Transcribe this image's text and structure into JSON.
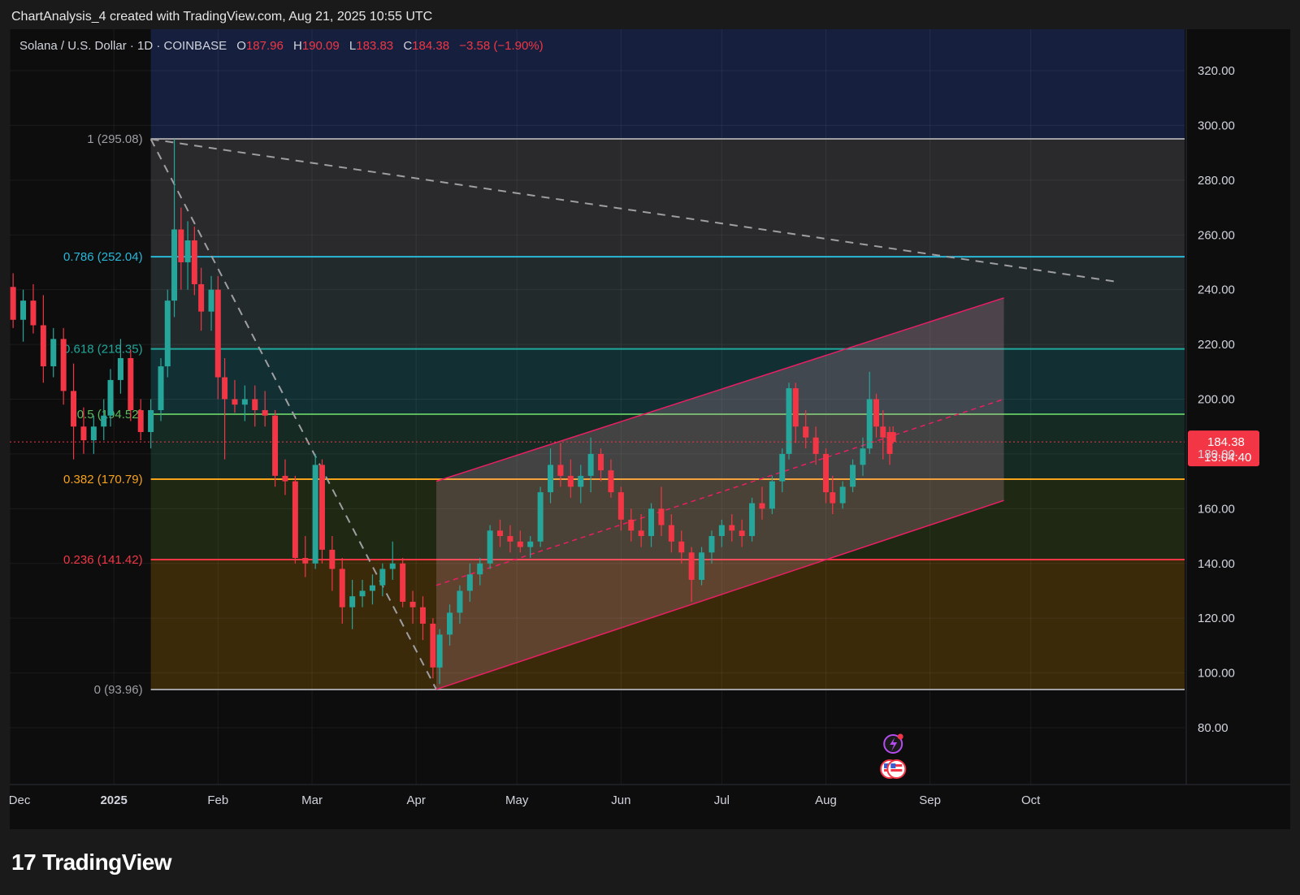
{
  "header": {
    "attribution": "ChartAnalysis_4 created with TradingView.com, Aug 21, 2025 10:55 UTC"
  },
  "legend": {
    "symbol": "Solana / U.S. Dollar · 1D · COINBASE",
    "open_label": "O",
    "open": "187.96",
    "high_label": "H",
    "high": "190.09",
    "low_label": "L",
    "low": "183.83",
    "close_label": "C",
    "close": "184.38",
    "change": "−3.58 (−1.90%)"
  },
  "footer": {
    "brand": "TradingView",
    "logo_mark": "17"
  },
  "colors": {
    "up": "#26a69a",
    "down": "#f23645",
    "channel": "#e91e63",
    "background": "#0d0d0e",
    "axis_text": "#d1d4dc"
  },
  "chart_data": {
    "type": "candlestick",
    "symbol": "SOLUSD",
    "timeframe": "1D",
    "ylim": [
      70,
      330
    ],
    "y_ticks": [
      80,
      100,
      120,
      140,
      160,
      180,
      200,
      220,
      240,
      260,
      280,
      300,
      320
    ],
    "y_tick_labels": [
      "80.00",
      "100.00",
      "120.00",
      "140.00",
      "160.00",
      "180.00",
      "200.00",
      "220.00",
      "240.00",
      "260.00",
      "280.00",
      "300.00",
      "320.00"
    ],
    "xlim": [
      "2024-12-01",
      "2025-10-26"
    ],
    "x_ticks": [
      {
        "date": "2024-12-01",
        "label": "Dec"
      },
      {
        "date": "2025-01-01",
        "label": "2025"
      },
      {
        "date": "2025-02-01",
        "label": "Feb"
      },
      {
        "date": "2025-03-01",
        "label": "Mar"
      },
      {
        "date": "2025-04-01",
        "label": "Apr"
      },
      {
        "date": "2025-05-01",
        "label": "May"
      },
      {
        "date": "2025-06-01",
        "label": "Jun"
      },
      {
        "date": "2025-07-01",
        "label": "Jul"
      },
      {
        "date": "2025-08-01",
        "label": "Aug"
      },
      {
        "date": "2025-09-01",
        "label": "Sep"
      },
      {
        "date": "2025-10-01",
        "label": "Oct"
      }
    ],
    "current_price": {
      "value": 184.38,
      "label": "184.38",
      "countdown": "13:04:40"
    },
    "fib_start": "2025-01-12",
    "fib_levels": [
      {
        "ratio": "1",
        "price": 295.08,
        "label": "1 (295.08)",
        "color": "#9e9ea3",
        "band": "#2a2a2c"
      },
      {
        "ratio": "0.786",
        "price": 252.04,
        "label": "0.786 (252.04)",
        "color": "#2ab7d8",
        "band": "#222a2c"
      },
      {
        "ratio": "0.618",
        "price": 218.35,
        "label": "0.618 (218.35)",
        "color": "#1fa89a",
        "band": "#123034"
      },
      {
        "ratio": "0.5",
        "price": 194.52,
        "label": "0.5 (194.52)",
        "color": "#5cb85c",
        "band": "#142a22"
      },
      {
        "ratio": "0.382",
        "price": 170.79,
        "label": "0.382 (170.79)",
        "color": "#f7a21b",
        "band": "#1e2812"
      },
      {
        "ratio": "0.236",
        "price": 141.42,
        "label": "0.236 (141.42)",
        "color": "#f23645",
        "band": "#3a2a0a"
      },
      {
        "ratio": "0",
        "price": 93.96,
        "label": "0 (93.96)",
        "color": "#9e9ea3",
        "band": "#3b1519"
      }
    ],
    "top_band_color": "#16203e",
    "trendlines": [
      {
        "from": [
          "2025-01-12",
          295
        ],
        "to": [
          "2025-10-26",
          243
        ],
        "style": "dashed",
        "color": "#9e9ea3"
      },
      {
        "from": [
          "2025-01-12",
          295
        ],
        "to": [
          "2025-04-07",
          94
        ],
        "style": "dashed",
        "color": "#9e9ea3"
      }
    ],
    "channel": {
      "upper": [
        [
          "2025-04-07",
          170
        ],
        [
          "2025-09-23",
          237
        ]
      ],
      "lower": [
        [
          "2025-04-07",
          94
        ],
        [
          "2025-09-23",
          163
        ]
      ],
      "mid": [
        [
          "2025-04-07",
          132
        ],
        [
          "2025-09-23",
          200
        ]
      ],
      "color": "#e91e63"
    },
    "candles": [
      [
        "2024-11-29",
        236,
        246,
        231,
        241
      ],
      [
        "2024-12-02",
        241,
        246,
        226,
        229
      ],
      [
        "2024-12-05",
        229,
        240,
        221,
        236
      ],
      [
        "2024-12-08",
        236,
        242,
        224,
        227
      ],
      [
        "2024-12-11",
        227,
        238,
        206,
        212
      ],
      [
        "2024-12-14",
        212,
        226,
        208,
        222
      ],
      [
        "2024-12-17",
        222,
        226,
        198,
        203
      ],
      [
        "2024-12-20",
        203,
        213,
        178,
        190
      ],
      [
        "2024-12-23",
        190,
        197,
        180,
        185
      ],
      [
        "2024-12-26",
        185,
        194,
        180,
        190
      ],
      [
        "2024-12-29",
        190,
        200,
        185,
        194
      ],
      [
        "2024-12-31",
        194,
        211,
        190,
        207
      ],
      [
        "2025-01-03",
        207,
        222,
        202,
        215
      ],
      [
        "2025-01-06",
        215,
        218,
        192,
        196
      ],
      [
        "2025-01-09",
        196,
        200,
        185,
        188
      ],
      [
        "2025-01-12",
        188,
        200,
        182,
        196
      ],
      [
        "2025-01-15",
        196,
        215,
        192,
        212
      ],
      [
        "2025-01-17",
        212,
        240,
        208,
        236
      ],
      [
        "2025-01-19",
        236,
        295,
        230,
        262
      ],
      [
        "2025-01-21",
        262,
        270,
        240,
        250
      ],
      [
        "2025-01-23",
        250,
        265,
        240,
        258
      ],
      [
        "2025-01-25",
        258,
        263,
        238,
        242
      ],
      [
        "2025-01-27",
        242,
        248,
        225,
        232
      ],
      [
        "2025-01-30",
        232,
        245,
        225,
        240
      ],
      [
        "2025-02-01",
        240,
        245,
        200,
        208
      ],
      [
        "2025-02-03",
        208,
        215,
        178,
        200
      ],
      [
        "2025-02-06",
        200,
        207,
        195,
        198
      ],
      [
        "2025-02-09",
        198,
        205,
        192,
        200
      ],
      [
        "2025-02-12",
        200,
        205,
        190,
        196
      ],
      [
        "2025-02-15",
        196,
        203,
        190,
        194
      ],
      [
        "2025-02-18",
        194,
        196,
        168,
        172
      ],
      [
        "2025-02-21",
        172,
        178,
        165,
        170
      ],
      [
        "2025-02-24",
        170,
        172,
        140,
        142
      ],
      [
        "2025-02-27",
        142,
        150,
        135,
        140
      ],
      [
        "2025-03-02",
        140,
        180,
        138,
        176
      ],
      [
        "2025-03-04",
        176,
        178,
        140,
        145
      ],
      [
        "2025-03-07",
        145,
        150,
        130,
        138
      ],
      [
        "2025-03-10",
        138,
        142,
        118,
        124
      ],
      [
        "2025-03-13",
        124,
        134,
        116,
        128
      ],
      [
        "2025-03-16",
        128,
        134,
        124,
        130
      ],
      [
        "2025-03-19",
        130,
        136,
        125,
        132
      ],
      [
        "2025-03-22",
        132,
        140,
        128,
        138
      ],
      [
        "2025-03-25",
        138,
        148,
        134,
        140
      ],
      [
        "2025-03-28",
        140,
        142,
        124,
        126
      ],
      [
        "2025-03-31",
        126,
        130,
        118,
        124
      ],
      [
        "2025-04-03",
        124,
        128,
        112,
        118
      ],
      [
        "2025-04-06",
        118,
        120,
        98,
        102
      ],
      [
        "2025-04-08",
        102,
        116,
        96,
        114
      ],
      [
        "2025-04-11",
        114,
        125,
        110,
        122
      ],
      [
        "2025-04-14",
        122,
        132,
        118,
        130
      ],
      [
        "2025-04-17",
        130,
        140,
        126,
        136
      ],
      [
        "2025-04-20",
        136,
        142,
        132,
        140
      ],
      [
        "2025-04-23",
        140,
        154,
        138,
        152
      ],
      [
        "2025-04-26",
        152,
        156,
        146,
        150
      ],
      [
        "2025-04-29",
        150,
        154,
        144,
        148
      ],
      [
        "2025-05-02",
        148,
        152,
        144,
        146
      ],
      [
        "2025-05-05",
        146,
        150,
        142,
        148
      ],
      [
        "2025-05-08",
        148,
        168,
        146,
        166
      ],
      [
        "2025-05-11",
        166,
        182,
        162,
        176
      ],
      [
        "2025-05-14",
        176,
        184,
        168,
        172
      ],
      [
        "2025-05-17",
        172,
        178,
        164,
        168
      ],
      [
        "2025-05-20",
        168,
        176,
        162,
        172
      ],
      [
        "2025-05-23",
        172,
        186,
        166,
        180
      ],
      [
        "2025-05-26",
        180,
        182,
        170,
        174
      ],
      [
        "2025-05-29",
        174,
        178,
        164,
        166
      ],
      [
        "2025-06-01",
        166,
        168,
        152,
        156
      ],
      [
        "2025-06-04",
        156,
        160,
        148,
        152
      ],
      [
        "2025-06-07",
        152,
        158,
        146,
        150
      ],
      [
        "2025-06-10",
        150,
        162,
        146,
        160
      ],
      [
        "2025-06-13",
        160,
        168,
        150,
        154
      ],
      [
        "2025-06-16",
        154,
        158,
        144,
        148
      ],
      [
        "2025-06-19",
        148,
        152,
        140,
        144
      ],
      [
        "2025-06-22",
        144,
        146,
        126,
        134
      ],
      [
        "2025-06-25",
        134,
        146,
        132,
        144
      ],
      [
        "2025-06-28",
        144,
        152,
        140,
        150
      ],
      [
        "2025-07-01",
        150,
        156,
        146,
        154
      ],
      [
        "2025-07-04",
        154,
        158,
        148,
        152
      ],
      [
        "2025-07-07",
        152,
        156,
        146,
        150
      ],
      [
        "2025-07-10",
        150,
        164,
        148,
        162
      ],
      [
        "2025-07-13",
        162,
        168,
        156,
        160
      ],
      [
        "2025-07-16",
        160,
        172,
        158,
        170
      ],
      [
        "2025-07-19",
        170,
        182,
        166,
        180
      ],
      [
        "2025-07-21",
        180,
        206,
        178,
        204
      ],
      [
        "2025-07-23",
        204,
        206,
        184,
        190
      ],
      [
        "2025-07-26",
        190,
        196,
        182,
        186
      ],
      [
        "2025-07-29",
        186,
        190,
        176,
        180
      ],
      [
        "2025-08-01",
        180,
        182,
        162,
        166
      ],
      [
        "2025-08-03",
        166,
        172,
        158,
        162
      ],
      [
        "2025-08-06",
        162,
        170,
        160,
        168
      ],
      [
        "2025-08-09",
        168,
        178,
        166,
        176
      ],
      [
        "2025-08-12",
        176,
        186,
        172,
        182
      ],
      [
        "2025-08-14",
        182,
        210,
        180,
        200
      ],
      [
        "2025-08-16",
        200,
        202,
        186,
        190
      ],
      [
        "2025-08-18",
        190,
        196,
        178,
        186
      ],
      [
        "2025-08-20",
        188,
        190,
        176,
        180
      ],
      [
        "2025-08-21",
        187.96,
        190.09,
        183.83,
        184.38
      ]
    ],
    "events": [
      {
        "date": "2025-08-21",
        "kind": "lightning-event-icon"
      },
      {
        "date": "2025-08-20",
        "kind": "us-flag-event-icon"
      },
      {
        "date": "2025-08-22",
        "kind": "us-flag-event-icon"
      }
    ]
  }
}
